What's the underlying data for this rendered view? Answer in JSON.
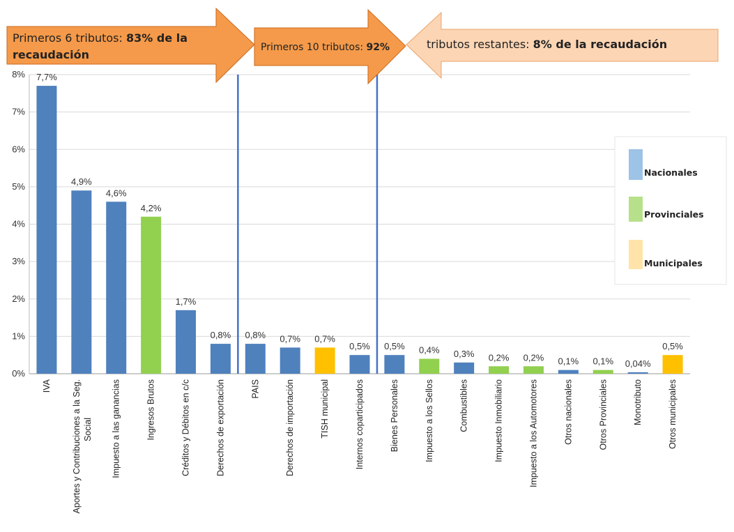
{
  "chart_data": {
    "type": "bar",
    "ylim": [
      0,
      8
    ],
    "yticks": [
      "0%",
      "1%",
      "2%",
      "3%",
      "4%",
      "5%",
      "6%",
      "7%",
      "8%"
    ],
    "grid": true,
    "categories": [
      "IVA",
      "Aportes y Contribuciones a la Seg. Social",
      "Impuesto a las ganancias",
      "Ingresos Brutos",
      "Créditos y Débitos en c/c",
      "Derechos de exportación",
      "PAIS",
      "Derechos de importación",
      "TISH municipal",
      "Internos coparticipados",
      "Bienes Personales",
      "Impuesto a los Sellos",
      "Combustibles",
      "Impuesto Inmobiliario",
      "Impuesto a los Automotores",
      "Otros nacionales",
      "Otros Provinciales",
      "Monotributo",
      "Otros municipales"
    ],
    "values": [
      7.7,
      4.9,
      4.6,
      4.2,
      1.7,
      0.8,
      0.8,
      0.7,
      0.7,
      0.5,
      0.5,
      0.4,
      0.3,
      0.2,
      0.2,
      0.1,
      0.1,
      0.04,
      0.5
    ],
    "value_labels": [
      "7,7%",
      "4,9%",
      "4,6%",
      "4,2%",
      "1,7%",
      "0,8%",
      "0,8%",
      "0,7%",
      "0,7%",
      "0,5%",
      "0,5%",
      "0,4%",
      "0,3%",
      "0,2%",
      "0,2%",
      "0,1%",
      "0,1%",
      "0,04%",
      "0,5%"
    ],
    "groups": [
      "Nacionales",
      "Nacionales",
      "Nacionales",
      "Provinciales",
      "Nacionales",
      "Nacionales",
      "Nacionales",
      "Nacionales",
      "Municipales",
      "Nacionales",
      "Nacionales",
      "Provinciales",
      "Nacionales",
      "Provinciales",
      "Provinciales",
      "Nacionales",
      "Provinciales",
      "Nacionales",
      "Municipales"
    ],
    "colors": {
      "Nacionales": "#4f81bd",
      "Provinciales": "#92d050",
      "Municipales": "#ffc000"
    },
    "legend": {
      "placement": "right",
      "entries": [
        {
          "label": "Nacionales",
          "color": "#9dc3e6"
        },
        {
          "label": "Provinciales",
          "color": "#b6e08a"
        },
        {
          "label": "Municipales",
          "color": "#ffe3a8"
        }
      ]
    },
    "separators_after": [
      "Derechos de exportación",
      "Internos coparticipados"
    ],
    "annotations": [
      {
        "normal": "Primeros 6 tributos: ",
        "bold": "83% de la",
        "line2_bold": "recaudación"
      },
      {
        "normal": "Primeros 10 tributos: ",
        "bold": "92%"
      },
      {
        "normal": "tributos restantes: ",
        "bold": "8% de la recaudación"
      }
    ]
  }
}
